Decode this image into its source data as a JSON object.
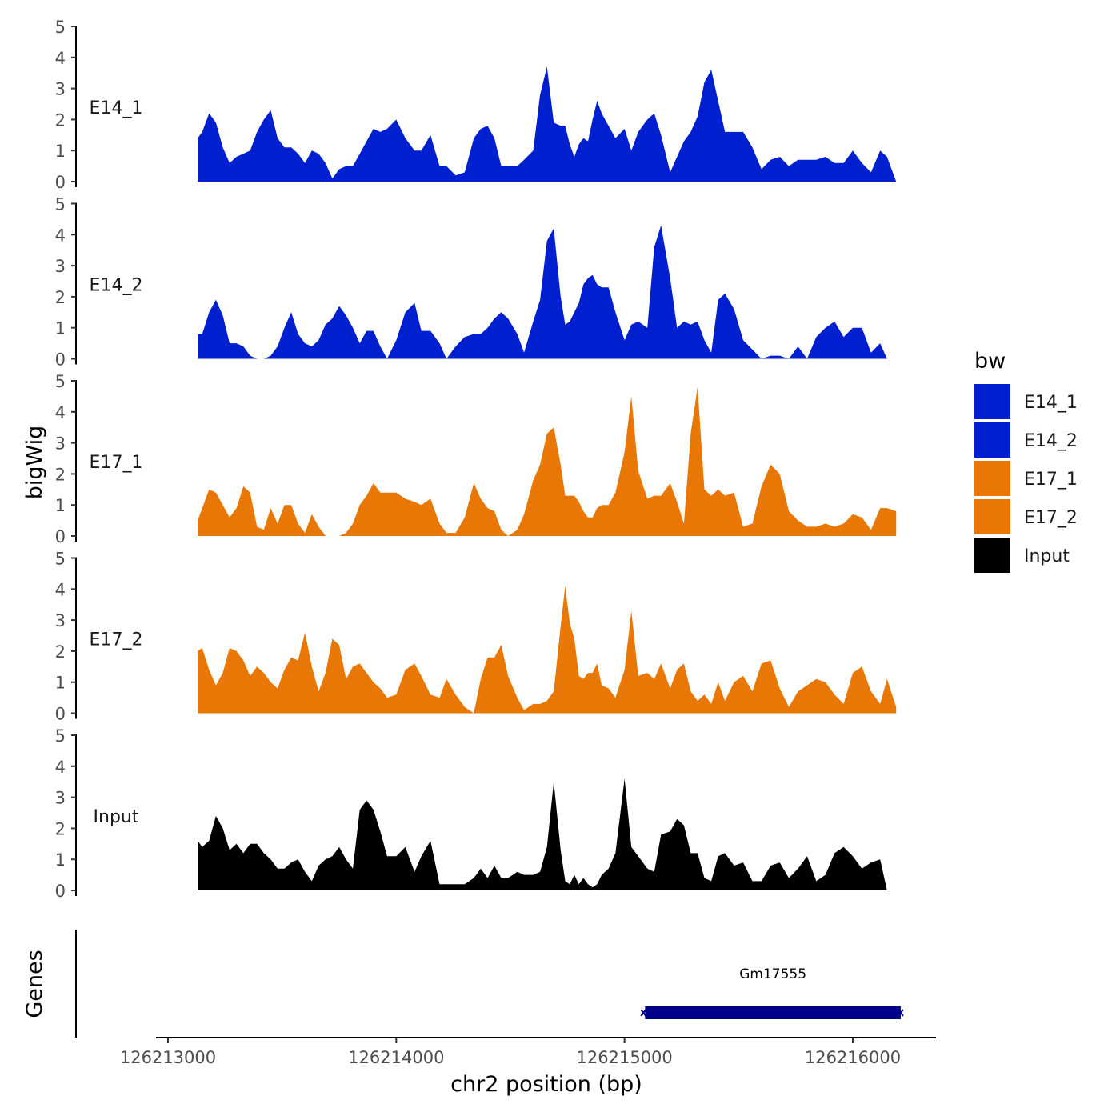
{
  "chart_data": {
    "type": "area",
    "ylabel": "bigWig",
    "xlabel": "chr2 position (bp)",
    "genes_label": "Genes",
    "legend_title": "bw",
    "xlim": [
      126212950,
      126216350
    ],
    "x_ticks": [
      126213000,
      126214000,
      126215000,
      126216000
    ],
    "x_tick_labels": [
      "126213000",
      "126214000",
      "126215000",
      "126216000"
    ],
    "ylim": [
      0,
      5
    ],
    "y_ticks": [
      0,
      1,
      2,
      3,
      4,
      5
    ],
    "y_tick_labels": [
      "0",
      "1",
      "2",
      "3",
      "4",
      "5"
    ],
    "colors": {
      "E14": "#0020d0",
      "E17": "#e87706",
      "Input": "#000000",
      "gene": "#00008b"
    },
    "series": [
      {
        "name": "E14_1",
        "color": "#0020d0",
        "x": [
          126213130,
          126213150,
          126213180,
          126213210,
          126213240,
          126213270,
          126213300,
          126213330,
          126213360,
          126213390,
          126213420,
          126213450,
          126213480,
          126213510,
          126213540,
          126213570,
          126213600,
          126213630,
          126213660,
          126213690,
          126213720,
          126213750,
          126213780,
          126213810,
          126213840,
          126213870,
          126213900,
          126213930,
          126213960,
          126214000,
          126214040,
          126214080,
          126214110,
          126214150,
          126214190,
          126214220,
          126214260,
          126214300,
          126214340,
          126214370,
          126214400,
          126214430,
          126214460,
          126214490,
          126214530,
          126214560,
          126214600,
          126214630,
          126214660,
          126214690,
          126214720,
          126214740,
          126214760,
          126214780,
          126214800,
          126214820,
          126214840,
          126214860,
          126214880,
          126214900,
          126214930,
          126214960,
          126215000,
          126215030,
          126215060,
          126215100,
          126215130,
          126215160,
          126215200,
          126215230,
          126215260,
          126215290,
          126215320,
          126215350,
          126215380,
          126215410,
          126215440,
          126215480,
          126215520,
          126215560,
          126215600,
          126215640,
          126215680,
          126215720,
          126215760,
          126215800,
          126215840,
          126215880,
          126215920,
          126215960,
          126216000,
          126216040,
          126216080,
          126216120,
          126216150,
          126216190
        ],
        "values": [
          1.4,
          1.6,
          2.2,
          1.9,
          1.1,
          0.6,
          0.8,
          0.9,
          1.0,
          1.6,
          2.0,
          2.3,
          1.4,
          1.1,
          1.1,
          0.9,
          0.6,
          1.0,
          0.9,
          0.6,
          0.1,
          0.4,
          0.5,
          0.5,
          0.9,
          1.3,
          1.7,
          1.6,
          1.7,
          2.0,
          1.4,
          1.0,
          1.0,
          1.5,
          0.5,
          0.5,
          0.2,
          0.3,
          1.4,
          1.7,
          1.8,
          1.4,
          0.5,
          0.5,
          0.5,
          0.7,
          1.0,
          2.8,
          3.7,
          1.9,
          1.8,
          1.8,
          1.2,
          0.8,
          1.2,
          1.4,
          1.3,
          2.0,
          2.6,
          2.2,
          1.8,
          1.4,
          1.7,
          1.0,
          1.6,
          2.0,
          2.2,
          1.5,
          0.3,
          0.8,
          1.3,
          1.6,
          2.1,
          3.2,
          3.6,
          2.6,
          1.6,
          1.6,
          1.6,
          1.1,
          0.4,
          0.7,
          0.8,
          0.5,
          0.7,
          0.7,
          0.7,
          0.8,
          0.6,
          0.6,
          1.0,
          0.6,
          0.3,
          1.0,
          0.8,
          0.0
        ]
      },
      {
        "name": "E14_2",
        "color": "#0020d0",
        "x": [
          126213130,
          126213150,
          126213180,
          126213210,
          126213240,
          126213270,
          126213300,
          126213330,
          126213360,
          126213390,
          126213420,
          126213450,
          126213480,
          126213510,
          126213540,
          126213570,
          126213600,
          126213630,
          126213660,
          126213690,
          126213720,
          126213750,
          126213780,
          126213810,
          126213840,
          126213870,
          126213900,
          126213930,
          126213960,
          126214000,
          126214040,
          126214080,
          126214110,
          126214150,
          126214190,
          126214220,
          126214260,
          126214300,
          126214340,
          126214370,
          126214400,
          126214430,
          126214460,
          126214490,
          126214530,
          126214560,
          126214600,
          126214630,
          126214660,
          126214690,
          126214720,
          126214740,
          126214760,
          126214780,
          126214800,
          126214820,
          126214840,
          126214860,
          126214880,
          126214900,
          126214930,
          126214960,
          126215000,
          126215030,
          126215060,
          126215100,
          126215130,
          126215160,
          126215200,
          126215230,
          126215260,
          126215290,
          126215320,
          126215350,
          126215380,
          126215410,
          126215440,
          126215480,
          126215520,
          126215560,
          126215600,
          126215640,
          126215680,
          126215720,
          126215760,
          126215800,
          126215840,
          126215880,
          126215920,
          126215960,
          126216000,
          126216040,
          126216080,
          126216120,
          126216150,
          126216190
        ],
        "values": [
          0.8,
          0.8,
          1.5,
          1.9,
          1.4,
          0.5,
          0.5,
          0.4,
          0.1,
          0.0,
          0.0,
          0.1,
          0.4,
          1.0,
          1.5,
          0.8,
          0.5,
          0.4,
          0.6,
          1.1,
          1.3,
          1.7,
          1.4,
          1.0,
          0.5,
          0.9,
          0.9,
          0.4,
          0.0,
          0.6,
          1.5,
          1.8,
          0.9,
          0.9,
          0.5,
          0.0,
          0.4,
          0.7,
          0.8,
          0.8,
          1.0,
          1.3,
          1.5,
          1.3,
          0.8,
          0.2,
          1.2,
          1.9,
          3.8,
          4.2,
          2.0,
          1.1,
          1.2,
          1.5,
          1.8,
          2.4,
          2.6,
          2.7,
          2.4,
          2.3,
          2.3,
          1.5,
          0.6,
          1.1,
          1.2,
          1.0,
          3.6,
          4.3,
          2.6,
          1.0,
          1.2,
          1.1,
          1.2,
          0.6,
          0.2,
          1.9,
          2.1,
          1.6,
          0.6,
          0.3,
          0.0,
          0.1,
          0.1,
          0.0,
          0.4,
          0.0,
          0.7,
          1.0,
          1.2,
          0.7,
          1.0,
          1.0,
          0.2,
          0.5,
          0.0,
          0.0
        ]
      },
      {
        "name": "E17_1",
        "color": "#e87706",
        "x": [
          126213130,
          126213150,
          126213180,
          126213210,
          126213240,
          126213270,
          126213300,
          126213330,
          126213360,
          126213390,
          126213420,
          126213450,
          126213480,
          126213510,
          126213540,
          126213570,
          126213600,
          126213630,
          126213660,
          126213690,
          126213720,
          126213750,
          126213780,
          126213810,
          126213840,
          126213870,
          126213900,
          126213930,
          126213960,
          126214000,
          126214040,
          126214080,
          126214110,
          126214150,
          126214190,
          126214220,
          126214260,
          126214300,
          126214340,
          126214370,
          126214400,
          126214430,
          126214460,
          126214490,
          126214530,
          126214560,
          126214600,
          126214630,
          126214660,
          126214690,
          126214720,
          126214740,
          126214760,
          126214780,
          126214800,
          126214820,
          126214840,
          126214860,
          126214880,
          126214900,
          126214930,
          126214960,
          126215000,
          126215030,
          126215060,
          126215100,
          126215130,
          126215160,
          126215200,
          126215230,
          126215260,
          126215290,
          126215320,
          126215350,
          126215380,
          126215410,
          126215440,
          126215480,
          126215520,
          126215560,
          126215600,
          126215640,
          126215680,
          126215720,
          126215760,
          126215800,
          126215840,
          126215880,
          126215920,
          126215960,
          126216000,
          126216040,
          126216080,
          126216120,
          126216150,
          126216190
        ],
        "values": [
          0.5,
          0.9,
          1.5,
          1.4,
          1.0,
          0.6,
          0.9,
          1.6,
          1.4,
          0.3,
          0.2,
          0.9,
          0.4,
          1.0,
          1.0,
          0.4,
          0.1,
          0.7,
          0.3,
          0.0,
          0.0,
          0.0,
          0.1,
          0.4,
          1.0,
          1.3,
          1.7,
          1.4,
          1.4,
          1.4,
          1.2,
          1.1,
          1.0,
          1.2,
          0.4,
          0.1,
          0.1,
          0.6,
          1.7,
          1.2,
          0.9,
          0.8,
          0.2,
          0.0,
          0.2,
          0.7,
          1.8,
          2.3,
          3.3,
          3.5,
          2.3,
          1.3,
          1.3,
          1.3,
          1.1,
          0.8,
          0.6,
          0.6,
          0.9,
          1.0,
          1.0,
          1.4,
          2.7,
          4.5,
          2.1,
          1.2,
          1.3,
          1.3,
          1.7,
          1.1,
          0.4,
          3.3,
          4.8,
          1.5,
          1.3,
          1.5,
          1.3,
          1.4,
          0.3,
          0.4,
          1.6,
          2.3,
          2.0,
          0.8,
          0.5,
          0.3,
          0.3,
          0.4,
          0.3,
          0.4,
          0.7,
          0.6,
          0.2,
          0.9,
          0.9,
          0.8
        ]
      },
      {
        "name": "E17_2",
        "color": "#e87706",
        "x": [
          126213130,
          126213150,
          126213180,
          126213210,
          126213240,
          126213270,
          126213300,
          126213330,
          126213360,
          126213390,
          126213420,
          126213450,
          126213480,
          126213510,
          126213540,
          126213570,
          126213600,
          126213630,
          126213660,
          126213690,
          126213720,
          126213750,
          126213780,
          126213810,
          126213840,
          126213870,
          126213900,
          126213930,
          126213960,
          126214000,
          126214040,
          126214080,
          126214110,
          126214150,
          126214190,
          126214220,
          126214260,
          126214300,
          126214340,
          126214370,
          126214400,
          126214430,
          126214460,
          126214490,
          126214530,
          126214560,
          126214600,
          126214630,
          126214660,
          126214690,
          126214720,
          126214740,
          126214760,
          126214780,
          126214800,
          126214820,
          126214840,
          126214860,
          126214880,
          126214900,
          126214930,
          126214960,
          126215000,
          126215030,
          126215060,
          126215100,
          126215130,
          126215160,
          126215200,
          126215230,
          126215260,
          126215290,
          126215320,
          126215350,
          126215380,
          126215410,
          126215440,
          126215480,
          126215520,
          126215560,
          126215600,
          126215640,
          126215680,
          126215720,
          126215760,
          126215800,
          126215840,
          126215880,
          126215920,
          126215960,
          126216000,
          126216040,
          126216080,
          126216120,
          126216150,
          126216190
        ],
        "values": [
          2.0,
          2.1,
          1.4,
          0.9,
          1.3,
          2.1,
          2.0,
          1.7,
          1.2,
          1.5,
          1.3,
          1.0,
          0.8,
          1.4,
          1.8,
          1.7,
          2.6,
          1.5,
          0.7,
          1.3,
          2.4,
          2.2,
          1.1,
          1.5,
          1.6,
          1.3,
          1.0,
          0.8,
          0.5,
          0.6,
          1.4,
          1.6,
          1.2,
          0.6,
          0.5,
          1.1,
          0.6,
          0.2,
          0.0,
          1.1,
          1.8,
          1.8,
          2.2,
          1.2,
          0.5,
          0.1,
          0.3,
          0.3,
          0.4,
          0.7,
          2.8,
          4.1,
          2.9,
          2.4,
          1.2,
          1.1,
          1.3,
          1.3,
          1.6,
          0.9,
          0.8,
          0.5,
          1.4,
          3.3,
          1.2,
          1.3,
          1.1,
          1.6,
          0.8,
          1.4,
          1.6,
          0.7,
          0.4,
          0.6,
          0.3,
          1.0,
          0.4,
          1.0,
          1.2,
          0.7,
          1.6,
          1.7,
          0.8,
          0.2,
          0.7,
          0.9,
          1.1,
          1.0,
          0.6,
          0.3,
          1.3,
          1.5,
          0.7,
          0.3,
          1.1,
          0.2
        ]
      },
      {
        "name": "Input",
        "color": "#000000",
        "x": [
          126213130,
          126213150,
          126213180,
          126213210,
          126213240,
          126213270,
          126213300,
          126213330,
          126213360,
          126213390,
          126213420,
          126213450,
          126213480,
          126213510,
          126213540,
          126213570,
          126213600,
          126213630,
          126213660,
          126213690,
          126213720,
          126213750,
          126213780,
          126213810,
          126213840,
          126213870,
          126213900,
          126213930,
          126213960,
          126214000,
          126214040,
          126214080,
          126214110,
          126214150,
          126214190,
          126214220,
          126214260,
          126214300,
          126214340,
          126214370,
          126214400,
          126214430,
          126214460,
          126214490,
          126214530,
          126214560,
          126214600,
          126214630,
          126214660,
          126214690,
          126214720,
          126214740,
          126214760,
          126214780,
          126214800,
          126214820,
          126214840,
          126214860,
          126214880,
          126214900,
          126214930,
          126214960,
          126215000,
          126215030,
          126215060,
          126215100,
          126215130,
          126215160,
          126215200,
          126215230,
          126215260,
          126215290,
          126215320,
          126215350,
          126215380,
          126215410,
          126215440,
          126215480,
          126215520,
          126215560,
          126215600,
          126215640,
          126215680,
          126215720,
          126215760,
          126215800,
          126215840,
          126215880,
          126215920,
          126215960,
          126216000,
          126216040,
          126216080,
          126216120,
          126216150,
          126216190
        ],
        "values": [
          1.6,
          1.4,
          1.6,
          2.4,
          2.0,
          1.3,
          1.5,
          1.2,
          1.5,
          1.5,
          1.2,
          1.0,
          0.7,
          0.7,
          0.9,
          1.0,
          0.6,
          0.3,
          0.8,
          1.0,
          1.1,
          1.4,
          1.0,
          0.7,
          2.6,
          2.9,
          2.6,
          1.9,
          1.1,
          1.1,
          1.4,
          0.6,
          1.1,
          1.6,
          0.2,
          0.2,
          0.2,
          0.2,
          0.4,
          0.7,
          0.4,
          0.8,
          0.4,
          0.4,
          0.6,
          0.5,
          0.5,
          0.6,
          1.4,
          3.5,
          1.3,
          0.3,
          0.2,
          0.5,
          0.2,
          0.4,
          0.2,
          0.1,
          0.2,
          0.5,
          0.7,
          1.2,
          3.6,
          1.4,
          1.1,
          0.7,
          0.6,
          1.8,
          1.9,
          2.3,
          2.1,
          1.2,
          1.2,
          0.4,
          0.3,
          1.1,
          1.2,
          0.8,
          0.9,
          0.3,
          0.3,
          0.8,
          0.9,
          0.4,
          0.7,
          1.1,
          0.3,
          0.5,
          1.2,
          1.4,
          1.1,
          0.7,
          0.9,
          1.0,
          0.0,
          0.0
        ]
      }
    ],
    "genes": [
      {
        "name": "Gm17555",
        "start": 126215090,
        "end": 126216210,
        "strand": "+"
      }
    ]
  }
}
